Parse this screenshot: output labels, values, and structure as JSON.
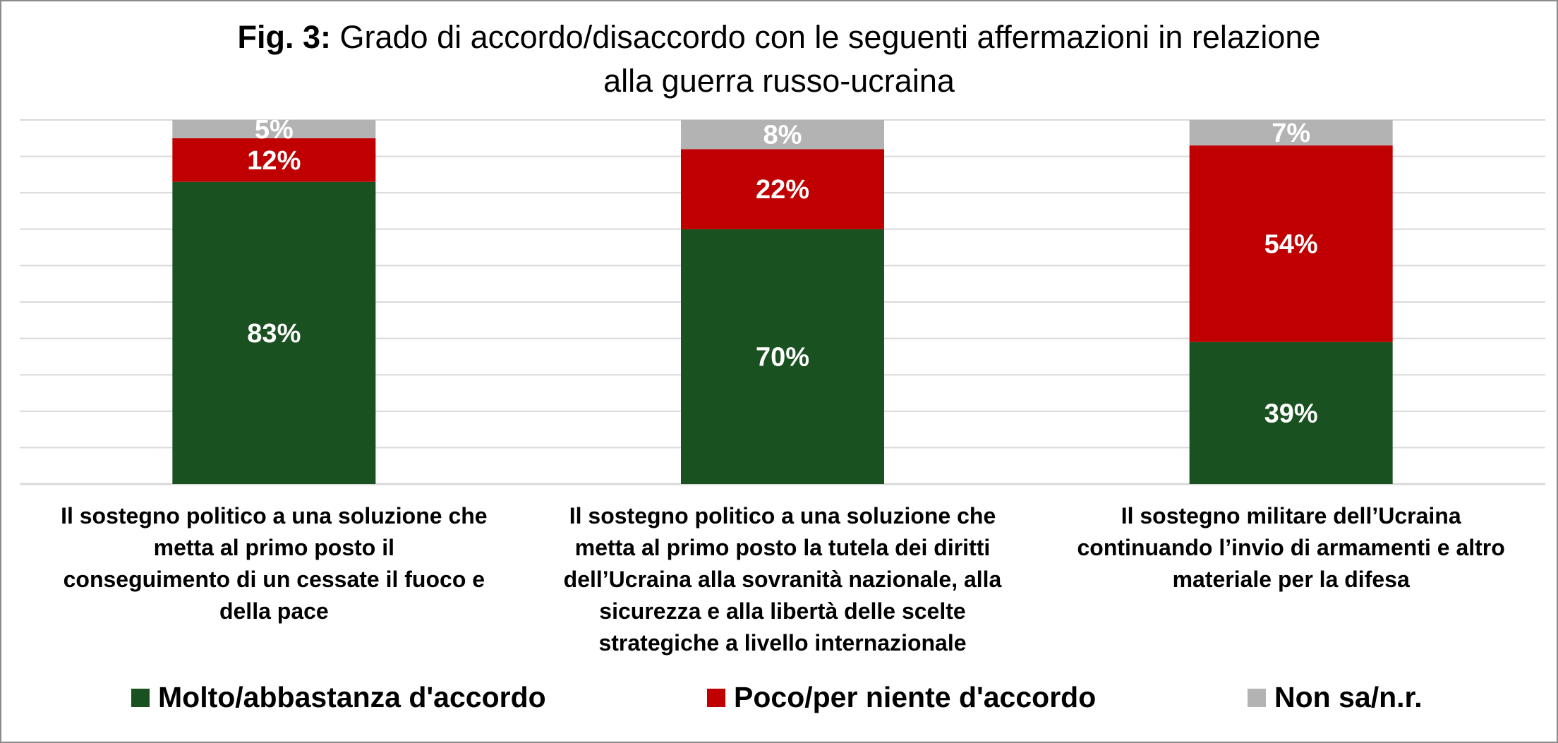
{
  "title": {
    "prefix": "Fig. 3:",
    "line1": "Grado di accordo/disaccordo con le seguenti affermazioni in relazione",
    "line2": "alla guerra russo-ucraina"
  },
  "colors": {
    "agree": "#1a5120",
    "disagree": "#c00000",
    "unknown": "#b3b3b3",
    "gridline": "#d9d9d9",
    "label_on_bar": "#ffffff"
  },
  "chart_data": {
    "type": "bar",
    "stacked": true,
    "grid": true,
    "legend_position": "bottom",
    "categories": [
      "Il sostegno politico a una soluzione che metta al primo posto il conseguimento di un cessate il fuoco e della pace",
      "Il sostegno politico a una soluzione che metta al primo posto la tutela dei diritti dell’Ucraina alla sovranità nazionale, alla sicurezza e alla libertà delle scelte strategiche a livello internazionale",
      "Il sostegno militare dell’Ucraina continuando l’invio di armamenti e altro materiale per la difesa"
    ],
    "category_lines": [
      [
        "Il sostegno politico a una soluzione che",
        "metta al primo posto il",
        "conseguimento di un cessate il fuoco e",
        "della pace"
      ],
      [
        "Il sostegno politico a una soluzione che",
        "metta al primo posto la tutela dei diritti",
        "dell’Ucraina alla sovranità nazionale, alla",
        "sicurezza e alla libertà delle scelte",
        "strategiche a livello internazionale"
      ],
      [
        "Il sostegno militare dell’Ucraina",
        "continuando l’invio di armamenti e altro",
        "materiale per la difesa"
      ]
    ],
    "series": [
      {
        "name": "Molto/abbastanza d'accordo",
        "values": [
          83,
          70,
          39
        ],
        "labels": [
          "83%",
          "70%",
          "39%"
        ],
        "color": "#1a5120"
      },
      {
        "name": "Poco/per niente d'accordo",
        "values": [
          12,
          22,
          54
        ],
        "labels": [
          "12%",
          "22%",
          "54%"
        ],
        "color": "#c00000"
      },
      {
        "name": "Non sa/n.r.",
        "values": [
          5,
          8,
          7
        ],
        "labels": [
          "5%",
          "8%",
          "7%"
        ],
        "color": "#b3b3b3"
      }
    ],
    "ylim": [
      0,
      100
    ]
  }
}
